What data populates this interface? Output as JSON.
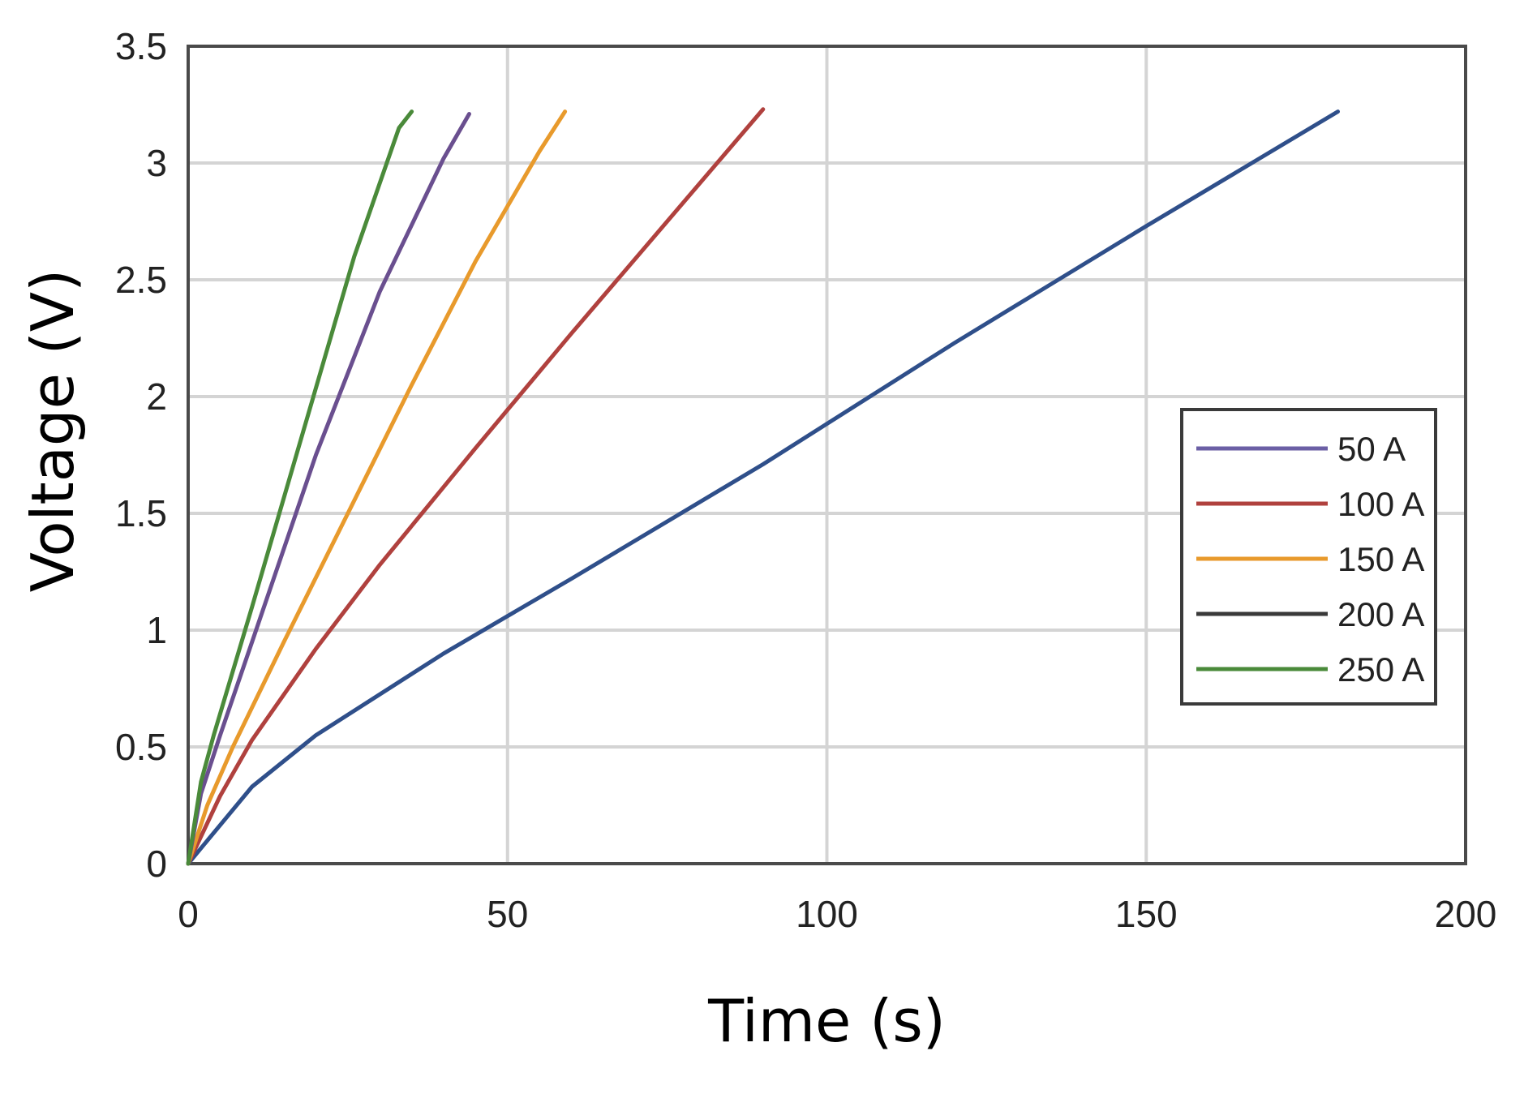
{
  "chart_data": {
    "type": "line",
    "xlabel": "Time (s)",
    "ylabel": "Voltage (V)",
    "xlim": [
      0,
      200
    ],
    "ylim": [
      0,
      3.5
    ],
    "xticks": [
      "0",
      "50",
      "100",
      "150",
      "200"
    ],
    "yticks": [
      "0",
      "0.5",
      "1",
      "1.5",
      "2",
      "2.5",
      "3",
      "3.5"
    ],
    "xtick_values": [
      0,
      50,
      100,
      150,
      200
    ],
    "ytick_values": [
      0,
      0.5,
      1,
      1.5,
      2,
      2.5,
      3,
      3.5
    ],
    "grid": true,
    "legend_position": "right",
    "series": [
      {
        "name": "50 A",
        "color": "#2f4f8a",
        "x": [
          0,
          10,
          20,
          40,
          60,
          90,
          120,
          150,
          180
        ],
        "y": [
          0,
          0.33,
          0.55,
          0.9,
          1.22,
          1.71,
          2.23,
          2.73,
          3.22
        ]
      },
      {
        "name": "100 A",
        "color": "#b0413e",
        "x": [
          0,
          5,
          10,
          20,
          30,
          45,
          60,
          75,
          90
        ],
        "y": [
          0,
          0.29,
          0.53,
          0.92,
          1.28,
          1.78,
          2.27,
          2.75,
          3.23
        ]
      },
      {
        "name": "150 A",
        "color": "#e89a2c",
        "x": [
          0,
          3,
          7,
          15,
          25,
          35,
          45,
          55,
          59
        ],
        "y": [
          0,
          0.25,
          0.5,
          0.95,
          1.5,
          2.05,
          2.58,
          3.05,
          3.22
        ]
      },
      {
        "name": "200 A",
        "color": "#6a4f8f",
        "x": [
          0,
          2,
          5,
          10,
          20,
          30,
          40,
          44
        ],
        "y": [
          0,
          0.3,
          0.55,
          0.95,
          1.75,
          2.45,
          3.02,
          3.21
        ]
      },
      {
        "name": "250 A",
        "color": "#4a8a3a",
        "x": [
          0,
          2,
          4,
          10,
          18,
          26,
          33,
          35
        ],
        "y": [
          0,
          0.35,
          0.55,
          1.1,
          1.85,
          2.6,
          3.15,
          3.22
        ]
      }
    ],
    "legend_line_colors": [
      "#6b5fa5",
      "#b0413e",
      "#e89a2c",
      "#3a3a3a",
      "#4a8a3a"
    ]
  }
}
